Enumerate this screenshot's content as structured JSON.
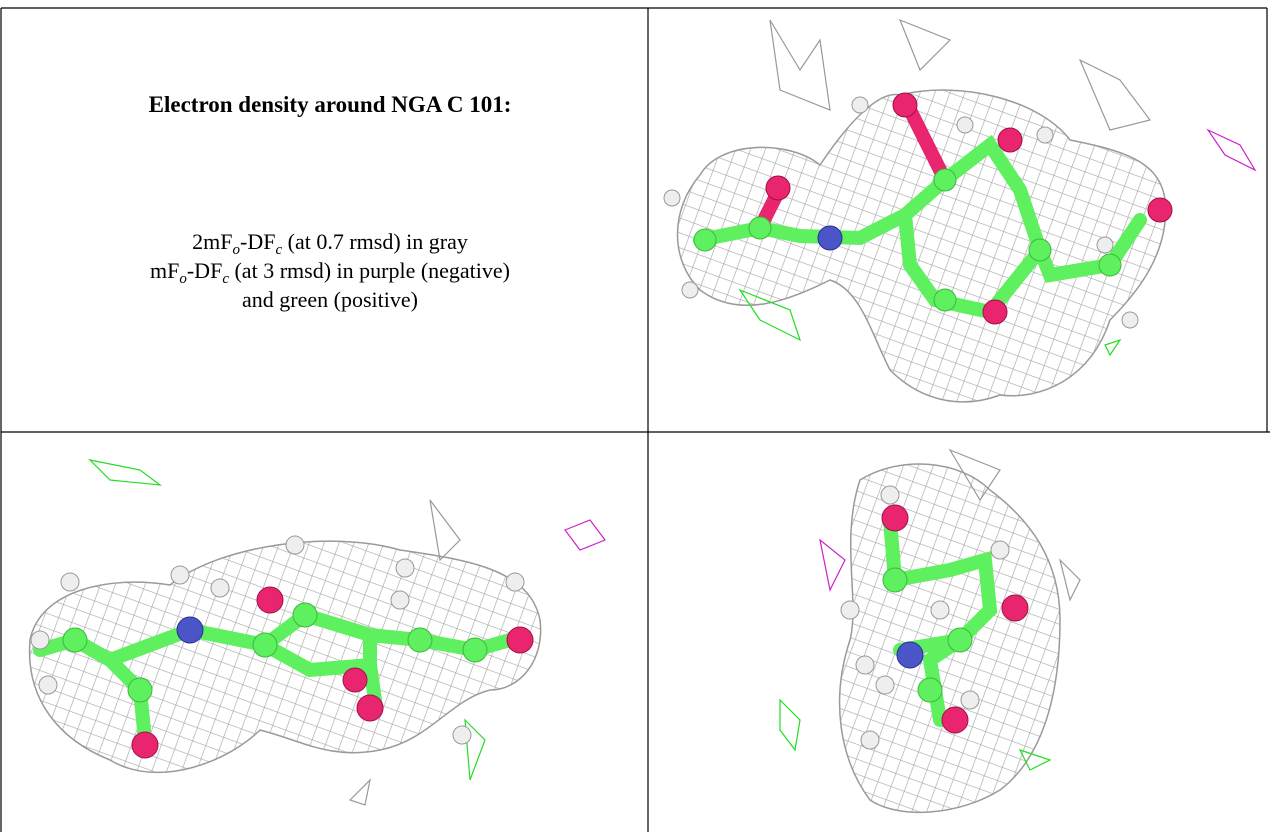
{
  "header": {
    "title": "Electron density around NGA C 101:"
  },
  "caption": {
    "lines": [
      [
        "2mF",
        "o",
        "-DF",
        "c",
        " (at 0.7 rmsd) in gray"
      ],
      [
        "mF",
        "o",
        "-DF",
        "c",
        " (at 3 rmsd) in purple (negative)"
      ],
      [
        "and green (positive)"
      ]
    ]
  }
}
